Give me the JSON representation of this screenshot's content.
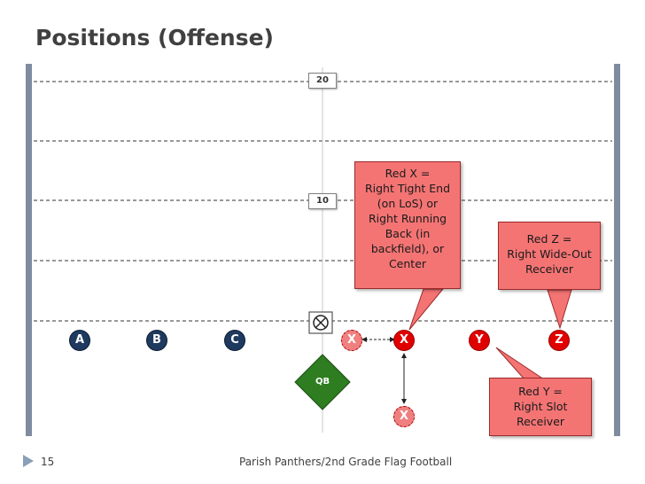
{
  "slide": {
    "title": "Positions (Offense)",
    "page_number": "15",
    "footer_text": "Parish Panthers/2nd Grade Flag Football"
  },
  "field": {
    "yard_markers": [
      "20",
      "10"
    ]
  },
  "players": {
    "blue_1": "A",
    "blue_2": "B",
    "blue_3": "C",
    "center_alt": "X",
    "red_x": "X",
    "red_y": "Y",
    "red_z": "Z",
    "backfield_alt": "X",
    "qb": "QB"
  },
  "callouts": {
    "red_x": [
      "Red X =",
      "Right Tight End",
      "(on LoS) or",
      "Right Running",
      "Back (in",
      "backfield), or",
      "Center"
    ],
    "red_z": [
      "Red Z =",
      "Right Wide-Out",
      "Receiver"
    ],
    "red_y": [
      "Red Y =",
      "Right Slot",
      "Receiver"
    ]
  },
  "colors": {
    "blue_player": "#1f3a5f",
    "red_player": "#e00000",
    "callout_fill": "#f47474",
    "qb_fill": "#2e7d20",
    "sideline": "#7f8ca0"
  }
}
